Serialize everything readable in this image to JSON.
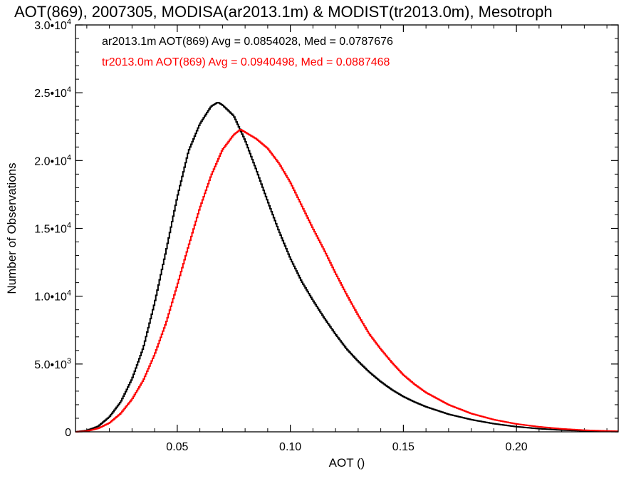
{
  "chart_data": {
    "type": "line",
    "title": "AOT(869), 2007305, MODISA(ar2013.1m) & MODIST(tr2013.0m), Mesotroph",
    "xlabel": "AOT ()",
    "ylabel": "Number of Observations",
    "xlim": [
      0.005,
      0.245
    ],
    "ylim": [
      0,
      30000
    ],
    "x_ticks": [
      {
        "value": 0.05,
        "label": "0.05"
      },
      {
        "value": 0.1,
        "label": "0.10"
      },
      {
        "value": 0.15,
        "label": "0.15"
      },
      {
        "value": 0.2,
        "label": "0.20"
      }
    ],
    "y_ticks": [
      {
        "value": 0,
        "mant": "0",
        "exp": ""
      },
      {
        "value": 5000,
        "mant": "5.0•10",
        "exp": "3"
      },
      {
        "value": 10000,
        "mant": "1.0•10",
        "exp": "4"
      },
      {
        "value": 15000,
        "mant": "1.5•10",
        "exp": "4"
      },
      {
        "value": 20000,
        "mant": "2.0•10",
        "exp": "4"
      },
      {
        "value": 25000,
        "mant": "2.5•10",
        "exp": "4"
      },
      {
        "value": 30000,
        "mant": "3.0•10",
        "exp": "4"
      }
    ],
    "grid": false,
    "histogram_step": true,
    "bin_width": 0.0005,
    "series": [
      {
        "name": "ar2013.1m",
        "color": "#000000",
        "stats_text": "ar2013.1m AOT(869) Avg = 0.0854028, Med = 0.0787676",
        "x": [
          0.005,
          0.01,
          0.015,
          0.02,
          0.025,
          0.03,
          0.035,
          0.04,
          0.045,
          0.05,
          0.055,
          0.06,
          0.065,
          0.068,
          0.07,
          0.075,
          0.08,
          0.085,
          0.09,
          0.095,
          0.1,
          0.105,
          0.11,
          0.115,
          0.12,
          0.125,
          0.13,
          0.135,
          0.14,
          0.145,
          0.15,
          0.155,
          0.16,
          0.17,
          0.18,
          0.19,
          0.2,
          0.21,
          0.22,
          0.23,
          0.245
        ],
        "y": [
          0,
          100,
          400,
          1100,
          2200,
          3900,
          6200,
          9500,
          13300,
          17300,
          20700,
          22700,
          24000,
          24300,
          24100,
          23300,
          21500,
          19300,
          17000,
          14800,
          12800,
          11100,
          9700,
          8400,
          7200,
          6100,
          5200,
          4400,
          3700,
          3100,
          2600,
          2200,
          1850,
          1300,
          900,
          600,
          380,
          230,
          130,
          70,
          20
        ]
      },
      {
        "name": "tr2013.0m",
        "color": "#ff0000",
        "stats_text": "tr2013.0m AOT(869) Avg = 0.0940498, Med = 0.0887468",
        "x": [
          0.005,
          0.01,
          0.015,
          0.02,
          0.025,
          0.03,
          0.035,
          0.04,
          0.045,
          0.05,
          0.055,
          0.06,
          0.065,
          0.07,
          0.075,
          0.078,
          0.08,
          0.085,
          0.09,
          0.095,
          0.1,
          0.105,
          0.11,
          0.115,
          0.12,
          0.125,
          0.13,
          0.135,
          0.14,
          0.145,
          0.15,
          0.155,
          0.16,
          0.17,
          0.18,
          0.19,
          0.2,
          0.21,
          0.22,
          0.23,
          0.245
        ],
        "y": [
          0,
          50,
          250,
          650,
          1350,
          2400,
          3800,
          5700,
          8000,
          10800,
          13700,
          16500,
          18900,
          20800,
          21900,
          22300,
          22100,
          21600,
          20900,
          19800,
          18400,
          16700,
          15000,
          13400,
          11700,
          10100,
          8600,
          7200,
          6100,
          5100,
          4200,
          3500,
          2900,
          2000,
          1350,
          900,
          580,
          370,
          220,
          120,
          40
        ]
      }
    ]
  }
}
